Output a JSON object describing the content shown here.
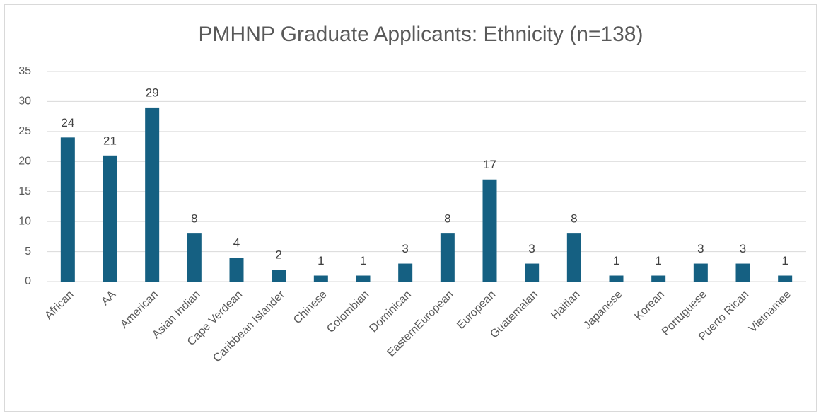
{
  "chart_data": {
    "type": "bar",
    "title": "PMHNP Graduate Applicants: Ethnicity (n=138)",
    "categories": [
      "African",
      "AA",
      "American",
      "Asian Indian",
      "Cape Verdean",
      "Caribbean Islander",
      "Chinese",
      "Colombian",
      "Dominican",
      "EasternEuropean",
      "European",
      "Guatemalan",
      "Haitian",
      "Japanese",
      "Korean",
      "Portuguese",
      "Puerto Rican",
      "Vietnamee"
    ],
    "values": [
      24,
      21,
      29,
      8,
      4,
      2,
      1,
      1,
      3,
      8,
      17,
      3,
      8,
      1,
      1,
      3,
      3,
      1
    ],
    "color": "#156082",
    "ylim": [
      0,
      35
    ],
    "yticks": [
      0,
      5,
      10,
      15,
      20,
      25,
      30,
      35
    ],
    "grid": true
  }
}
